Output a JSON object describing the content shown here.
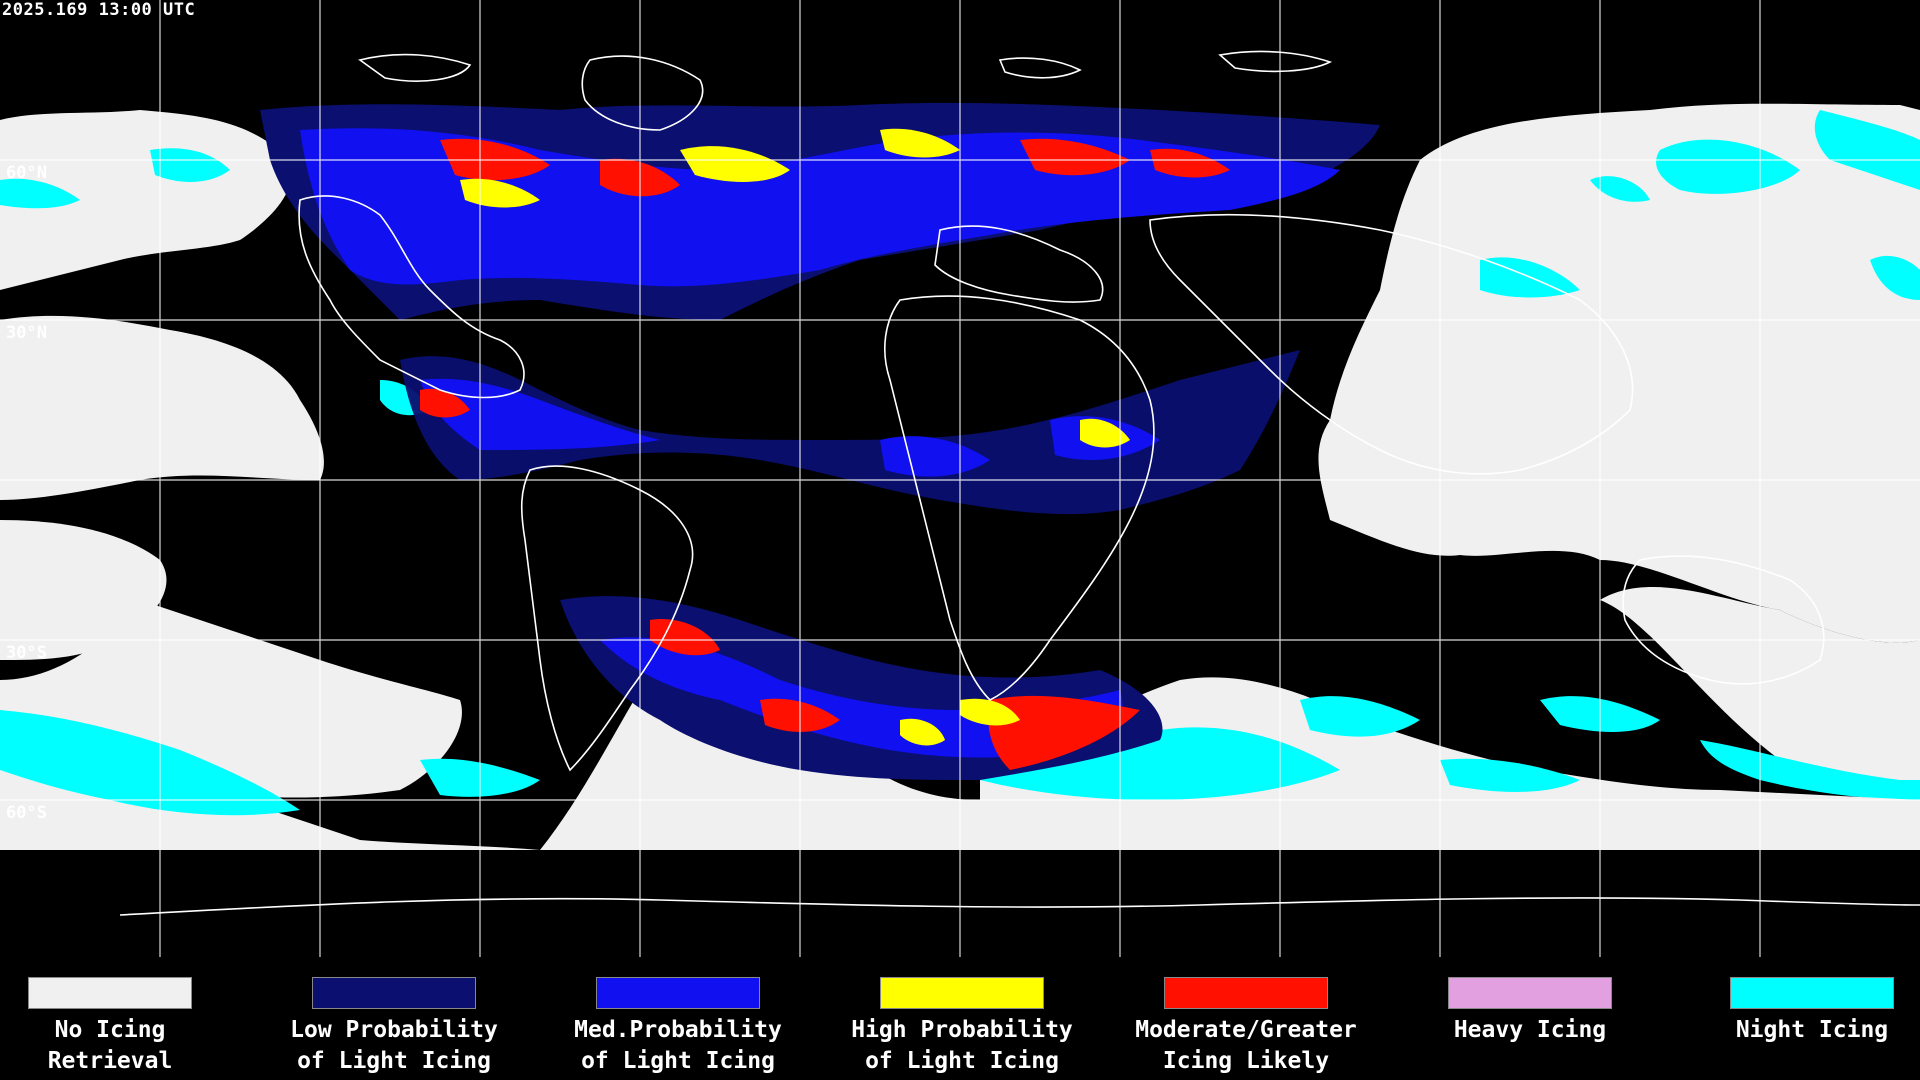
{
  "timestamp": "2025.169 13:00 UTC",
  "lat_labels": [
    "60°N",
    "30°N",
    "30°S",
    "60°S"
  ],
  "colors": {
    "background": "#000000",
    "grid": "#ffffff",
    "coast": "#ffffff",
    "no_icing": "#f0f0f0",
    "low_prob": "#0a0f70",
    "med_prob": "#1010f0",
    "high_prob": "#ffff00",
    "moderate": "#ff1000",
    "heavy": "#e3a0e0",
    "night": "#00ffff"
  },
  "legend": [
    {
      "label": "No Icing\nRetrieval",
      "color": "#f0f0f0"
    },
    {
      "label": "Low Probability\nof Light Icing",
      "color": "#0a0f70"
    },
    {
      "label": "Med.Probability\nof Light Icing",
      "color": "#1010f0"
    },
    {
      "label": "High Probability\nof Light Icing",
      "color": "#ffff00"
    },
    {
      "label": "Moderate/Greater\nIcing Likely",
      "color": "#ff1000"
    },
    {
      "label": "Heavy Icing",
      "color": "#e3a0e0"
    },
    {
      "label": "Night Icing",
      "color": "#00ffff"
    }
  ]
}
